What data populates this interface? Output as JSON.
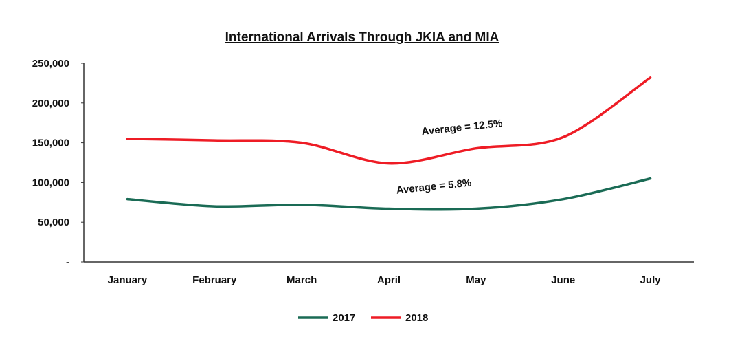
{
  "chart_data": {
    "type": "line",
    "title": "International Arrivals Through JKIA and MIA",
    "xlabel": "",
    "ylabel": "",
    "categories": [
      "January",
      "February",
      "March",
      "April",
      "May",
      "June",
      "July"
    ],
    "y_ticks": [
      {
        "value": 0,
        "label": "-"
      },
      {
        "value": 50000,
        "label": "50,000"
      },
      {
        "value": 100000,
        "label": "100,000"
      },
      {
        "value": 150000,
        "label": "150,000"
      },
      {
        "value": 200000,
        "label": "200,000"
      },
      {
        "value": 250000,
        "label": "250,000"
      }
    ],
    "ylim": [
      0,
      250000
    ],
    "grid": false,
    "legend_position": "bottom-center",
    "series": [
      {
        "name": "2017",
        "color": "#1a6b55",
        "values": [
          79000,
          70000,
          72000,
          67000,
          67000,
          79000,
          105000
        ]
      },
      {
        "name": "2018",
        "color": "#ee1c25",
        "values": [
          155000,
          153000,
          150000,
          124000,
          143000,
          157000,
          232000
        ]
      }
    ],
    "annotations": [
      {
        "text": "Average = 12.5%",
        "series": "2018"
      },
      {
        "text": "Average = 5.8%",
        "series": "2017"
      }
    ]
  }
}
